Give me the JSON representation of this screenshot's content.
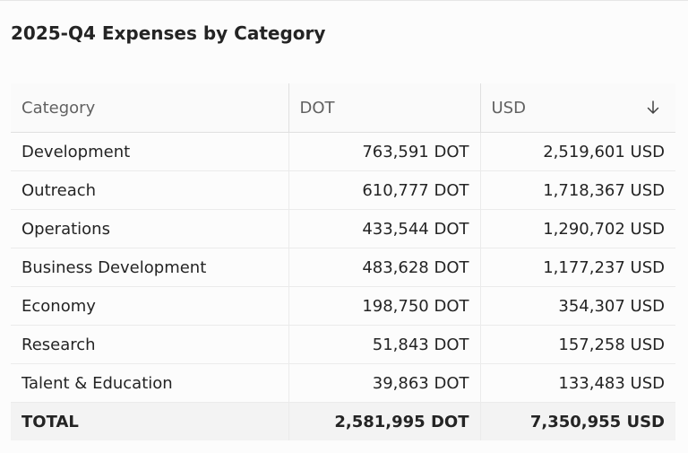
{
  "title": "2025-Q4 Expenses by Category",
  "table": {
    "headers": [
      "Category",
      "DOT",
      "USD"
    ],
    "sort": {
      "column": "USD",
      "direction": "descending",
      "icon": "arrow-down-icon"
    },
    "rows": [
      {
        "category": "Development",
        "dot": "763,591 DOT",
        "usd": "2,519,601 USD"
      },
      {
        "category": "Outreach",
        "dot": "610,777 DOT",
        "usd": "1,718,367 USD"
      },
      {
        "category": "Operations",
        "dot": "433,544 DOT",
        "usd": "1,290,702 USD"
      },
      {
        "category": "Business Development",
        "dot": "483,628 DOT",
        "usd": "1,177,237 USD"
      },
      {
        "category": "Economy",
        "dot": "198,750 DOT",
        "usd": "354,307 USD"
      },
      {
        "category": "Research",
        "dot": "51,843 DOT",
        "usd": "157,258 USD"
      },
      {
        "category": "Talent & Education",
        "dot": "39,863 DOT",
        "usd": "133,483 USD"
      }
    ],
    "total": {
      "category": "TOTAL",
      "dot": "2,581,995 DOT",
      "usd": "7,350,955 USD"
    }
  }
}
